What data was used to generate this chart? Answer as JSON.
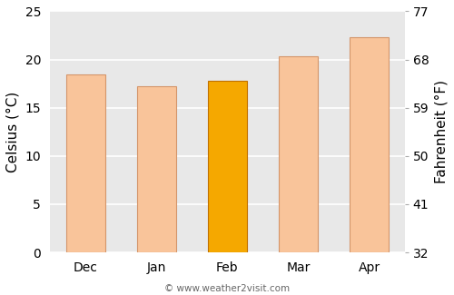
{
  "categories": [
    "Dec",
    "Jan",
    "Feb",
    "Mar",
    "Apr"
  ],
  "values_c": [
    18.5,
    17.2,
    17.8,
    20.3,
    22.3
  ],
  "bar_colors": [
    "#f9c49a",
    "#f9c49a",
    "#f5a800",
    "#f9c49a",
    "#f9c49a"
  ],
  "bar_edgecolor": "#d4956a",
  "feb_edgecolor": "#c07000",
  "ylabel_left": "Celsius (°C)",
  "ylabel_right": "Fahrenheit (°F)",
  "ylim_c": [
    0,
    25
  ],
  "yticks_c": [
    0,
    5,
    10,
    15,
    20,
    25
  ],
  "yticks_f": [
    32,
    41,
    50,
    59,
    68,
    77
  ],
  "copyright": "© www.weather2visit.com",
  "background_color": "#ffffff",
  "plot_bg_color": "#e8e8e8",
  "grid_color": "#ffffff",
  "tick_label_fontsize": 10,
  "axis_label_fontsize": 11,
  "bar_width": 0.55
}
